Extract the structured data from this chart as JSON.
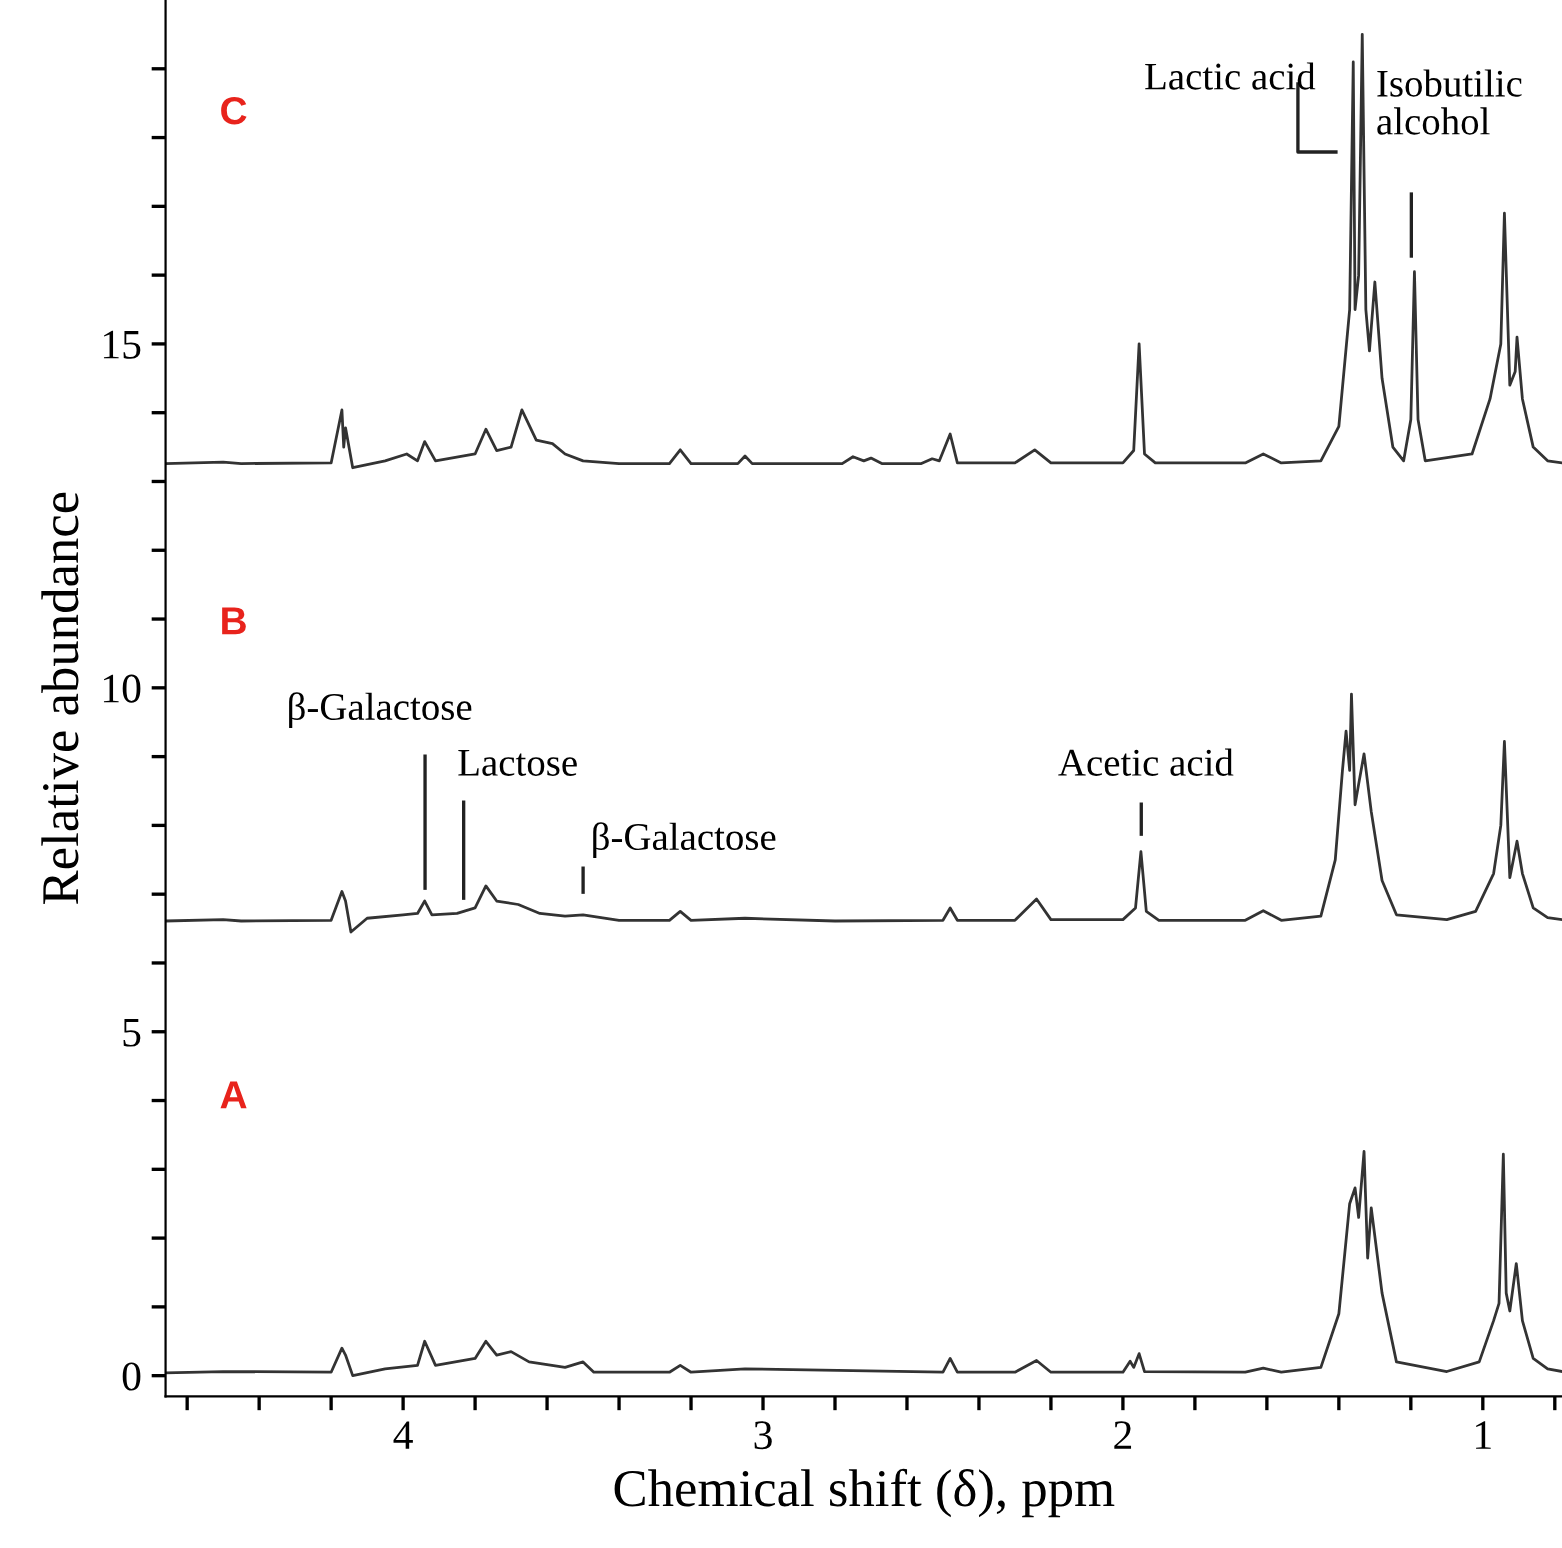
{
  "chart_data": {
    "type": "line",
    "xlabel": "Chemical shift (δ), ppm",
    "ylabel": "Relative abundance",
    "xlim": [
      4.66,
      0.78
    ],
    "ylim": [
      -0.3,
      20
    ],
    "xticks": [
      {
        "value": 4.6,
        "label": null
      },
      {
        "value": 4.4,
        "label": null
      },
      {
        "value": 4.2,
        "label": null
      },
      4,
      {
        "value": 3.8,
        "label": null
      },
      {
        "value": 3.6,
        "label": null
      },
      {
        "value": 3.4,
        "label": null
      },
      {
        "value": 3.2,
        "label": null
      },
      3,
      {
        "value": 2.8,
        "label": null
      },
      {
        "value": 2.6,
        "label": null
      },
      {
        "value": 2.4,
        "label": null
      },
      {
        "value": 2.2,
        "label": null
      },
      2,
      {
        "value": 1.8,
        "label": null
      },
      {
        "value": 1.6,
        "label": null
      },
      {
        "value": 1.4,
        "label": null
      },
      {
        "value": 1.2,
        "label": null
      },
      1,
      {
        "value": 0.8,
        "label": null
      }
    ],
    "yticks": [
      0,
      {
        "value": 1,
        "label": null
      },
      {
        "value": 2,
        "label": null
      },
      {
        "value": 3,
        "label": null
      },
      {
        "value": 4,
        "label": null
      },
      5,
      {
        "value": 6,
        "label": null
      },
      {
        "value": 7,
        "label": null
      },
      {
        "value": 8,
        "label": null
      },
      {
        "value": 9,
        "label": null
      },
      10,
      {
        "value": 11,
        "label": null
      },
      {
        "value": 12,
        "label": null
      },
      {
        "value": 13,
        "label": null
      },
      {
        "value": 14,
        "label": null
      },
      15,
      {
        "value": 16,
        "label": null
      },
      {
        "value": 17,
        "label": null
      },
      {
        "value": 18,
        "label": null
      },
      {
        "value": 19,
        "label": null
      }
    ],
    "grid": false,
    "legend": false,
    "marker": "none",
    "line_style": "solid",
    "series": [
      {
        "color": "#333333",
        "x": [
          4.66,
          4.5,
          4.2,
          4.17,
          4.16,
          4.14,
          4.05,
          3.96,
          3.94,
          3.91,
          3.8,
          3.77,
          3.74,
          3.7,
          3.65,
          3.55,
          3.5,
          3.47,
          3.26,
          3.23,
          3.2,
          3.05,
          2.5,
          2.48,
          2.46,
          2.3,
          2.24,
          2.2,
          2.0,
          1.98,
          1.97,
          1.955,
          1.94,
          1.66,
          1.61,
          1.56,
          1.45,
          1.4,
          1.37,
          1.355,
          1.345,
          1.33,
          1.32,
          1.31,
          1.28,
          1.24,
          1.1,
          1.01,
          0.97,
          0.955,
          0.943,
          0.935,
          0.925,
          0.907,
          0.89,
          0.86,
          0.82,
          0.78
        ],
        "values": [
          0.04,
          0.06,
          0.05,
          0.4,
          0.3,
          0.0,
          0.1,
          0.15,
          0.5,
          0.15,
          0.25,
          0.5,
          0.3,
          0.35,
          0.2,
          0.12,
          0.2,
          0.05,
          0.05,
          0.15,
          0.05,
          0.1,
          0.05,
          0.25,
          0.05,
          0.05,
          0.22,
          0.05,
          0.05,
          0.21,
          0.12,
          0.32,
          0.06,
          0.05,
          0.11,
          0.05,
          0.12,
          0.9,
          2.5,
          2.73,
          2.3,
          3.26,
          1.71,
          2.44,
          1.2,
          0.2,
          0.06,
          0.2,
          0.8,
          1.05,
          3.22,
          1.2,
          0.94,
          1.63,
          0.8,
          0.25,
          0.1,
          0.06
        ]
      },
      {
        "color": "#333333",
        "x": [
          4.66,
          4.5,
          4.45,
          4.2,
          4.17,
          4.16,
          4.145,
          4.1,
          4.0,
          3.96,
          3.94,
          3.92,
          3.85,
          3.8,
          3.77,
          3.74,
          3.68,
          3.62,
          3.55,
          3.5,
          3.4,
          3.26,
          3.23,
          3.2,
          3.05,
          2.8,
          2.5,
          2.48,
          2.46,
          2.3,
          2.24,
          2.2,
          2.0,
          1.965,
          1.95,
          1.935,
          1.9,
          1.66,
          1.61,
          1.56,
          1.45,
          1.41,
          1.39,
          1.38,
          1.37,
          1.365,
          1.355,
          1.345,
          1.33,
          1.31,
          1.28,
          1.24,
          1.1,
          1.02,
          0.97,
          0.95,
          0.94,
          0.925,
          0.905,
          0.89,
          0.86,
          0.82,
          0.78
        ],
        "values": [
          6.61,
          6.63,
          6.61,
          6.62,
          7.04,
          6.9,
          6.45,
          6.65,
          6.7,
          6.72,
          6.9,
          6.7,
          6.72,
          6.8,
          7.12,
          6.9,
          6.85,
          6.72,
          6.68,
          6.7,
          6.62,
          6.62,
          6.75,
          6.62,
          6.65,
          6.61,
          6.62,
          6.8,
          6.62,
          6.62,
          6.93,
          6.63,
          6.63,
          6.8,
          7.62,
          6.75,
          6.62,
          6.62,
          6.76,
          6.62,
          6.68,
          7.5,
          8.8,
          9.37,
          8.8,
          9.91,
          8.3,
          8.6,
          9.04,
          8.2,
          7.2,
          6.7,
          6.63,
          6.75,
          7.3,
          8.0,
          9.22,
          7.24,
          7.77,
          7.3,
          6.8,
          6.66,
          6.63
        ]
      },
      {
        "color": "#333333",
        "x": [
          4.66,
          4.5,
          4.45,
          4.2,
          4.17,
          4.165,
          4.16,
          4.14,
          4.05,
          3.99,
          3.96,
          3.94,
          3.91,
          3.8,
          3.77,
          3.74,
          3.7,
          3.67,
          3.63,
          3.585,
          3.55,
          3.5,
          3.4,
          3.26,
          3.23,
          3.2,
          3.07,
          3.05,
          3.03,
          2.78,
          2.75,
          2.72,
          2.7,
          2.67,
          2.56,
          2.53,
          2.51,
          2.48,
          2.46,
          2.3,
          2.245,
          2.2,
          2.0,
          1.97,
          1.955,
          1.94,
          1.91,
          1.66,
          1.61,
          1.56,
          1.45,
          1.4,
          1.37,
          1.36,
          1.355,
          1.345,
          1.335,
          1.325,
          1.315,
          1.3,
          1.28,
          1.25,
          1.22,
          1.2,
          1.19,
          1.18,
          1.16,
          1.03,
          0.98,
          0.95,
          0.94,
          0.925,
          0.91,
          0.905,
          0.89,
          0.86,
          0.82,
          0.78
        ],
        "values": [
          13.26,
          13.28,
          13.26,
          13.27,
          14.04,
          13.5,
          13.78,
          13.2,
          13.3,
          13.4,
          13.3,
          13.58,
          13.3,
          13.4,
          13.76,
          13.45,
          13.5,
          14.04,
          13.6,
          13.55,
          13.4,
          13.3,
          13.26,
          13.26,
          13.46,
          13.26,
          13.26,
          13.37,
          13.26,
          13.26,
          13.36,
          13.3,
          13.34,
          13.26,
          13.26,
          13.33,
          13.3,
          13.69,
          13.27,
          13.27,
          13.46,
          13.27,
          13.27,
          13.45,
          15.0,
          13.4,
          13.27,
          13.27,
          13.4,
          13.27,
          13.3,
          13.8,
          15.5,
          19.1,
          15.5,
          16.0,
          19.5,
          15.5,
          14.9,
          15.9,
          14.5,
          13.5,
          13.3,
          13.9,
          16.05,
          13.9,
          13.3,
          13.4,
          14.2,
          15.0,
          16.9,
          14.4,
          14.6,
          15.1,
          14.2,
          13.5,
          13.3,
          13.27
        ]
      }
    ],
    "annotations": [
      "C",
      "Lactic acid",
      "Isobutilic\nalcohol",
      "B",
      "β-Galactose",
      "Lactose",
      "β-Galactose",
      "Acetic acid",
      "A"
    ]
  }
}
